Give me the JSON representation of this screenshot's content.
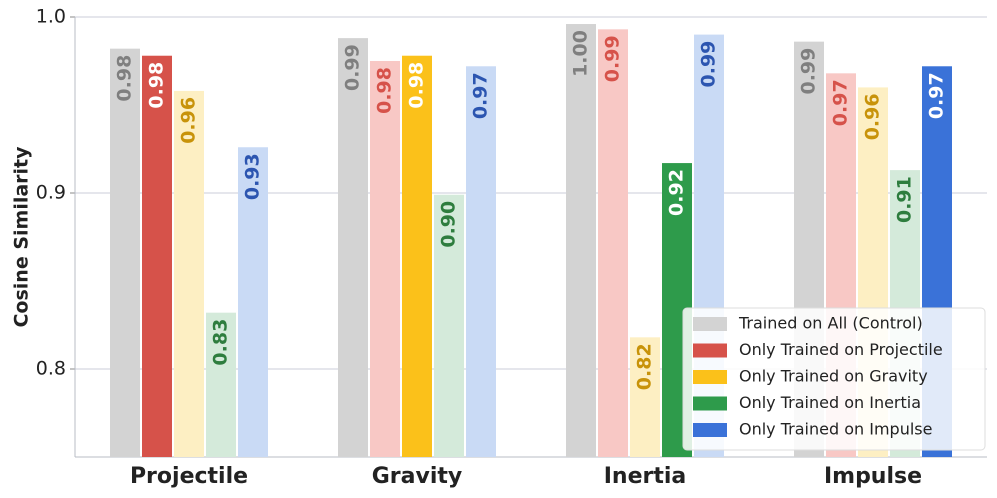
{
  "chart_data": {
    "type": "grouped_bar",
    "y_label": "Cosine Similarity",
    "categories": [
      "Projectile",
      "Gravity",
      "Inertia",
      "Impulse"
    ],
    "ylim": [
      0.75,
      1.0
    ],
    "yticks": [
      0.8,
      0.9,
      {
        "value": 1.0,
        "label": "1.0"
      }
    ],
    "grid": true,
    "legend": "lower right",
    "series": [
      {
        "name": "Trained on All (Control)",
        "color": "#d3d3d3",
        "colors": [
          "#d3d3d3",
          "#d3d3d3",
          "#d3d3d3",
          "#d3d3d3"
        ],
        "label_colors": [
          "#7f7f7f",
          "#7f7f7f",
          "#7f7f7f",
          "#7f7f7f"
        ],
        "values": [
          0.982,
          0.988,
          0.996,
          0.986
        ],
        "value_labels": [
          "0.98",
          "0.99",
          "1.00",
          "0.99"
        ]
      },
      {
        "name": "Only Trained on Projectile",
        "color": "#d6524a",
        "colors": [
          "#d6524a",
          "#f8c8c5",
          "#f8c8c5",
          "#f8c8c5"
        ],
        "label_colors": [
          "#ffffff",
          "#d6524a",
          "#d6524a",
          "#d6524a"
        ],
        "values": [
          0.978,
          0.975,
          0.993,
          0.968
        ],
        "value_labels": [
          "0.98",
          "0.98",
          "0.99",
          "0.97"
        ]
      },
      {
        "name": "Only Trained on Gravity",
        "color": "#fbc11a",
        "colors": [
          "#fdefc3",
          "#fbc11a",
          "#fdefc3",
          "#fdefc3"
        ],
        "label_colors": [
          "#c8930a",
          "#ffffff",
          "#c8930a",
          "#c8930a"
        ],
        "values": [
          0.958,
          0.978,
          0.818,
          0.96
        ],
        "value_labels": [
          "0.96",
          "0.98",
          "0.82",
          "0.96"
        ]
      },
      {
        "name": "Only Trained on Inertia",
        "color": "#2e9b4b",
        "colors": [
          "#d4eada",
          "#d4eada",
          "#2e9b4b",
          "#d4eada"
        ],
        "label_colors": [
          "#2e7d3e",
          "#2e7d3e",
          "#ffffff",
          "#2e7d3e"
        ],
        "values": [
          0.832,
          0.899,
          0.917,
          0.913
        ],
        "value_labels": [
          "0.83",
          "0.90",
          "0.92",
          "0.91"
        ]
      },
      {
        "name": "Only Trained on Impulse",
        "color": "#3a72d8",
        "colors": [
          "#c9daf5",
          "#c9daf5",
          "#c9daf5",
          "#3a72d8"
        ],
        "label_colors": [
          "#2c55b0",
          "#2c55b0",
          "#2c55b0",
          "#ffffff"
        ],
        "values": [
          0.926,
          0.972,
          0.99,
          0.972
        ],
        "value_labels": [
          "0.93",
          "0.97",
          "0.99",
          "0.97"
        ]
      }
    ]
  }
}
